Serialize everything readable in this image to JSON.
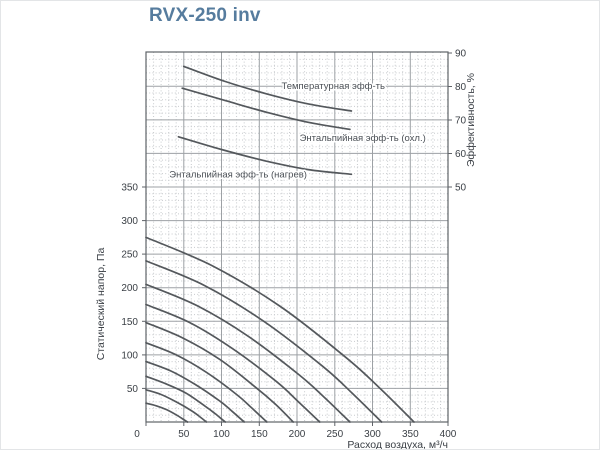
{
  "page": {
    "title": "RVX-250 inv"
  },
  "chart_data": {
    "type": "line",
    "title": "RVX-250 inv",
    "x_axis": {
      "label": "Расход воздуха, м³/ч",
      "min": 0,
      "max": 400,
      "ticks": [
        0,
        50,
        100,
        150,
        200,
        250,
        300,
        350,
        400
      ],
      "minor_step": 10,
      "grid": "on"
    },
    "y_axis_left": {
      "label": "Статический напор, Па",
      "min": 0,
      "max": 350,
      "ticks": [
        50,
        100,
        150,
        200,
        250,
        300,
        350
      ],
      "minor_step": 10
    },
    "y_axis_right": {
      "label": "Эффективность, %",
      "min": 50,
      "max": 90,
      "ticks": [
        50,
        60,
        70,
        80,
        90
      ]
    },
    "efficiency_curves": [
      {
        "name": "temperature-efficiency",
        "label": "Температурная эфф-ть",
        "label_pos": [
          248,
          79.2
        ],
        "points": [
          [
            50,
            86
          ],
          [
            105,
            81.5
          ],
          [
            160,
            77.8
          ],
          [
            215,
            74.8
          ],
          [
            272,
            72.7
          ]
        ]
      },
      {
        "name": "enthalpy-efficiency-cooling",
        "label": "Энтальпийная эфф-ть (охл.)",
        "label_pos": [
          287,
          63.8
        ],
        "points": [
          [
            48,
            79.5
          ],
          [
            105,
            75.8
          ],
          [
            160,
            72.3
          ],
          [
            215,
            69.3
          ],
          [
            270,
            67.2
          ]
        ]
      },
      {
        "name": "enthalpy-efficiency-heating",
        "label": "Энтальпийная эфф-ть (нагрев)",
        "label_pos": [
          122,
          52.8
        ],
        "points": [
          [
            43,
            65
          ],
          [
            100,
            61.2
          ],
          [
            158,
            57.8
          ],
          [
            215,
            55.2
          ],
          [
            272,
            53.8
          ]
        ]
      }
    ],
    "fan_curves": [
      {
        "p0": 275,
        "q_max": 355,
        "points": [
          [
            0,
            275
          ],
          [
            89,
            232
          ],
          [
            178,
            172
          ],
          [
            266,
            95
          ],
          [
            311,
            49
          ],
          [
            355,
            0
          ]
        ]
      },
      {
        "p0": 240,
        "q_max": 312,
        "points": [
          [
            0,
            240
          ],
          [
            78,
            203
          ],
          [
            156,
            150
          ],
          [
            234,
            83
          ],
          [
            273,
            43
          ],
          [
            312,
            0
          ]
        ]
      },
      {
        "p0": 205,
        "q_max": 270,
        "points": [
          [
            0,
            205
          ],
          [
            68,
            173
          ],
          [
            135,
            128
          ],
          [
            203,
            70
          ],
          [
            236,
            37
          ],
          [
            270,
            0
          ]
        ]
      },
      {
        "p0": 175,
        "q_max": 230,
        "points": [
          [
            0,
            175
          ],
          [
            58,
            148
          ],
          [
            115,
            109
          ],
          [
            173,
            60
          ],
          [
            201,
            31
          ],
          [
            230,
            0
          ]
        ]
      },
      {
        "p0": 148,
        "q_max": 195,
        "points": [
          [
            0,
            148
          ],
          [
            49,
            125
          ],
          [
            98,
            93
          ],
          [
            146,
            51
          ],
          [
            171,
            27
          ],
          [
            195,
            0
          ]
        ]
      },
      {
        "p0": 118,
        "q_max": 160,
        "points": [
          [
            0,
            118
          ],
          [
            40,
            100
          ],
          [
            80,
            74
          ],
          [
            120,
            41
          ],
          [
            140,
            21
          ],
          [
            160,
            0
          ]
        ]
      },
      {
        "p0": 90,
        "q_max": 130,
        "points": [
          [
            0,
            90
          ],
          [
            33,
            76
          ],
          [
            65,
            56
          ],
          [
            98,
            31
          ],
          [
            114,
            16
          ],
          [
            130,
            0
          ]
        ]
      },
      {
        "p0": 68,
        "q_max": 105,
        "points": [
          [
            0,
            68
          ],
          [
            26,
            57
          ],
          [
            53,
            43
          ],
          [
            79,
            23
          ],
          [
            92,
            12
          ],
          [
            105,
            0
          ]
        ]
      },
      {
        "p0": 48,
        "q_max": 80,
        "points": [
          [
            0,
            48
          ],
          [
            20,
            41
          ],
          [
            40,
            30
          ],
          [
            60,
            17
          ],
          [
            70,
            9
          ],
          [
            80,
            0
          ]
        ]
      },
      {
        "p0": 28,
        "q_max": 55,
        "points": [
          [
            0,
            28
          ],
          [
            14,
            24
          ],
          [
            28,
            18
          ],
          [
            41,
            10
          ],
          [
            48,
            5
          ],
          [
            55,
            0
          ]
        ]
      }
    ],
    "colors": {
      "title": "#567c9e",
      "curve": "#54585c",
      "grid_major": "#9da1a5",
      "grid_minor": "#c7cacd",
      "frame": "#5f6368",
      "text": "#3a3f45"
    }
  }
}
